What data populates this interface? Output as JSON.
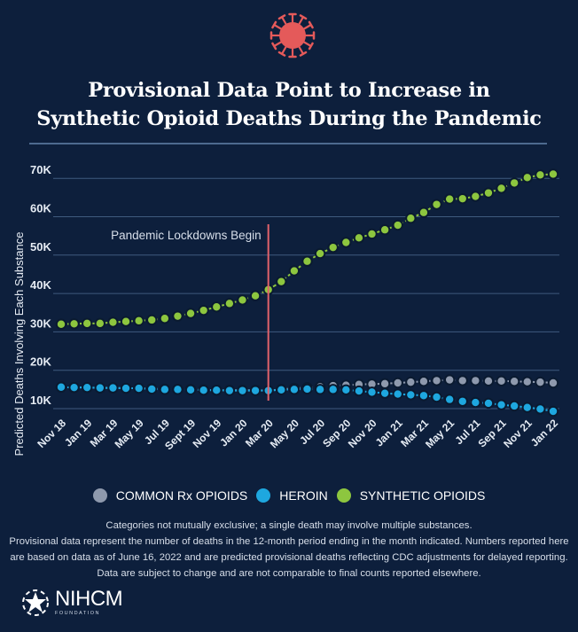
{
  "title_line1": "Provisional Data Point to Increase in",
  "title_line2": "Synthetic Opioid Deaths During the Pandemic",
  "icon": "virus-icon",
  "colors": {
    "background": "#0d1f3c",
    "virus": "#e45a5a",
    "rx": "#8e99ad",
    "heroin": "#1ea7df",
    "synthetic": "#8dc63f",
    "annotation_line": "#e0626b",
    "grid": "#3f5a7e"
  },
  "legend": [
    {
      "label": "COMMON Rx OPIOIDS",
      "color": "#8e99ad"
    },
    {
      "label": "HEROIN",
      "color": "#1ea7df"
    },
    {
      "label": "SYNTHETIC OPIOIDS",
      "color": "#8dc63f"
    }
  ],
  "notes": [
    "Categories not mutually exclusive; a single death may involve multiple substances.",
    "Provisional data represent the number of deaths in the 12-month period ending in the month indicated. Numbers reported here are based on data as of June 16, 2022 and are predicted provisional deaths reflecting CDC adjustments for delayed reporting. Data are subject to change and are not comparable to final counts reported elsewhere."
  ],
  "logo": {
    "name": "NIHCM",
    "sub": "FOUNDATION"
  },
  "chart_data": {
    "type": "line",
    "title": "Provisional Data Point to Increase in Synthetic Opioid Deaths During the Pandemic",
    "xlabel": "",
    "ylabel": "Predicted Deaths Involving Each Substance",
    "ylim": [
      10000,
      70000
    ],
    "yticks": [
      10000,
      20000,
      30000,
      40000,
      50000,
      60000,
      70000
    ],
    "ytick_labels": [
      "10K",
      "20K",
      "30K",
      "40K",
      "50K",
      "60K",
      "70K"
    ],
    "grid": true,
    "legend_position": "bottom",
    "x": [
      "Nov 18",
      "Dec 18",
      "Jan 19",
      "Feb 19",
      "Mar 19",
      "Apr 19",
      "May 19",
      "Jun 19",
      "Jul 19",
      "Aug 19",
      "Sept 19",
      "Oct 19",
      "Nov 19",
      "Dec 19",
      "Jan 20",
      "Feb 20",
      "Mar 20",
      "Apr 20",
      "May 20",
      "Jun 20",
      "Jul 20",
      "Aug 20",
      "Sep 20",
      "Oct 20",
      "Nov 20",
      "Dec 20",
      "Jan 21",
      "Feb 21",
      "Mar 21",
      "Apr 21",
      "May 21",
      "Jun 21",
      "Jul 21",
      "Aug 21",
      "Sep 21",
      "Oct 21",
      "Nov 21",
      "Dec 21",
      "Jan 22"
    ],
    "xtick_labels": [
      "Nov 18",
      "Jan 19",
      "Mar 19",
      "May 19",
      "Jul 19",
      "Sept 19",
      "Nov 19",
      "Jan 20",
      "Mar 20",
      "May 20",
      "Jul 20",
      "Sep 20",
      "Nov 20",
      "Jan 21",
      "Mar 21",
      "May 21",
      "Jul 21",
      "Sep 21",
      "Nov 21",
      "Jan 22"
    ],
    "series": [
      {
        "name": "COMMON Rx OPIOIDS",
        "color": "#8e99ad",
        "values": [
          15600,
          15500,
          15500,
          15400,
          15400,
          15300,
          15300,
          15200,
          15100,
          15000,
          15000,
          14900,
          14800,
          14800,
          14800,
          14800,
          14700,
          15000,
          15300,
          15500,
          15700,
          16000,
          16100,
          16300,
          16400,
          16500,
          16700,
          16900,
          17100,
          17300,
          17500,
          17300,
          17300,
          17200,
          17200,
          17100,
          17000,
          16900,
          16700
        ]
      },
      {
        "name": "HEROIN",
        "color": "#1ea7df",
        "values": [
          15600,
          15500,
          15500,
          15400,
          15400,
          15300,
          15300,
          15100,
          15000,
          15000,
          14900,
          14800,
          14800,
          14700,
          14700,
          14700,
          14700,
          14900,
          15000,
          15100,
          15000,
          15000,
          14900,
          14600,
          14300,
          14000,
          13800,
          13600,
          13400,
          13000,
          12400,
          11900,
          11600,
          11400,
          11000,
          10700,
          10300,
          9900,
          9300
        ]
      },
      {
        "name": "SYNTHETIC OPIOIDS",
        "color": "#8dc63f",
        "values": [
          32000,
          32100,
          32200,
          32200,
          32500,
          32700,
          32900,
          33100,
          33500,
          34100,
          34800,
          35600,
          36500,
          37400,
          38300,
          39400,
          41000,
          43100,
          45900,
          48400,
          50400,
          52000,
          53300,
          54500,
          55500,
          56600,
          57800,
          59600,
          61100,
          63200,
          64600,
          64700,
          65300,
          66200,
          67400,
          68800,
          70200,
          70900,
          71100
        ]
      }
    ],
    "annotations": [
      {
        "type": "vline",
        "x": "Mar 20",
        "label": "Pandemic Lockdowns Begin",
        "color": "#e0626b"
      }
    ]
  }
}
